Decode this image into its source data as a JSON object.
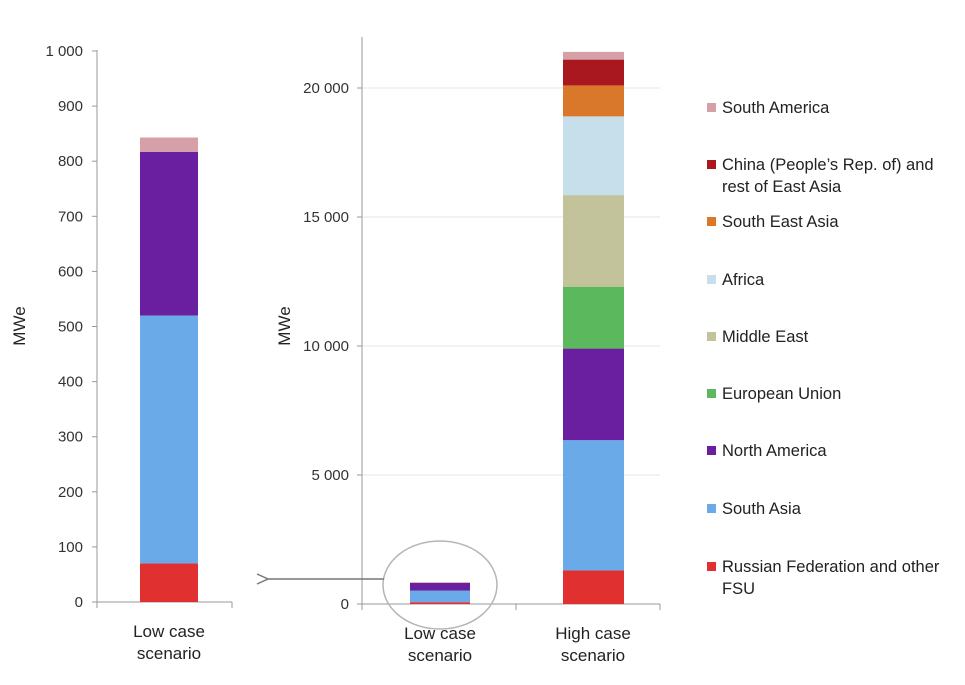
{
  "colors": {
    "Russian Federation and other FSU": "#e03030",
    "South Asia": "#6aaae8",
    "North America": "#6a1fa0",
    "European Union": "#5cb85c",
    "Middle East": "#c3c39b",
    "Africa": "#c7dfea",
    "South East Asia": "#d9782a",
    "China (People's Rep. of) and rest of East Asia": "#a8181e",
    "South America": "#d6a0a8"
  },
  "legend": {
    "items": [
      {
        "key": "South America",
        "lines": [
          "South America"
        ]
      },
      {
        "key": "China (People's Rep. of) and rest of East Asia",
        "lines": [
          "China (People’s Rep. of) and",
          "rest of East Asia"
        ]
      },
      {
        "key": "South East Asia",
        "lines": [
          "South East Asia"
        ]
      },
      {
        "key": "Africa",
        "lines": [
          "Africa"
        ]
      },
      {
        "key": "Middle East",
        "lines": [
          "Middle East"
        ]
      },
      {
        "key": "European Union",
        "lines": [
          "European Union"
        ]
      },
      {
        "key": "North America",
        "lines": [
          "North America"
        ]
      },
      {
        "key": "South Asia",
        "lines": [
          "South Asia"
        ]
      },
      {
        "key": "Russian Federation and other FSU",
        "lines": [
          "Russian Federation and other",
          "FSU"
        ]
      }
    ]
  },
  "chart_data": [
    {
      "type": "bar",
      "stacked": true,
      "ylabel": "MWe",
      "ylim": [
        0,
        1000
      ],
      "yticks": [
        0,
        100,
        200,
        300,
        400,
        500,
        600,
        700,
        800,
        900,
        1000
      ],
      "ytick_labels": [
        "0",
        "100",
        "200",
        "300",
        "400",
        "500",
        "600",
        "700",
        "800",
        "900",
        "1 000"
      ],
      "grid": false,
      "categories": [
        [
          "Low case",
          "scenario"
        ]
      ],
      "series": [
        {
          "name": "Russian Federation and other FSU",
          "values": [
            70
          ]
        },
        {
          "name": "South Asia",
          "values": [
            450
          ]
        },
        {
          "name": "North America",
          "values": [
            297
          ]
        },
        {
          "name": "South America",
          "values": [
            26
          ]
        }
      ]
    },
    {
      "type": "bar",
      "stacked": true,
      "ylabel": "MWe",
      "ylim": [
        0,
        22000
      ],
      "yticks": [
        0,
        5000,
        10000,
        15000,
        20000
      ],
      "ytick_labels": [
        "0",
        "5 000",
        "10 000",
        "15 000",
        "20 000"
      ],
      "grid": true,
      "legend_position": "right",
      "categories": [
        [
          "Low case",
          "scenario"
        ],
        [
          "High case",
          "scenario"
        ]
      ],
      "series": [
        {
          "name": "Russian Federation and other FSU",
          "values": [
            70,
            1300
          ]
        },
        {
          "name": "South Asia",
          "values": [
            450,
            5050
          ]
        },
        {
          "name": "North America",
          "values": [
            297,
            3550
          ]
        },
        {
          "name": "European Union",
          "values": [
            0,
            2400
          ]
        },
        {
          "name": "Middle East",
          "values": [
            0,
            3550
          ]
        },
        {
          "name": "Africa",
          "values": [
            0,
            3050
          ]
        },
        {
          "name": "South East Asia",
          "values": [
            0,
            1200
          ]
        },
        {
          "name": "China (People's Rep. of) and rest of East Asia",
          "values": [
            0,
            1000
          ]
        },
        {
          "name": "South America",
          "values": [
            26,
            300
          ]
        }
      ],
      "annotation": {
        "type": "zoom-callout",
        "category_index": 0,
        "target_chart": 0
      }
    }
  ]
}
